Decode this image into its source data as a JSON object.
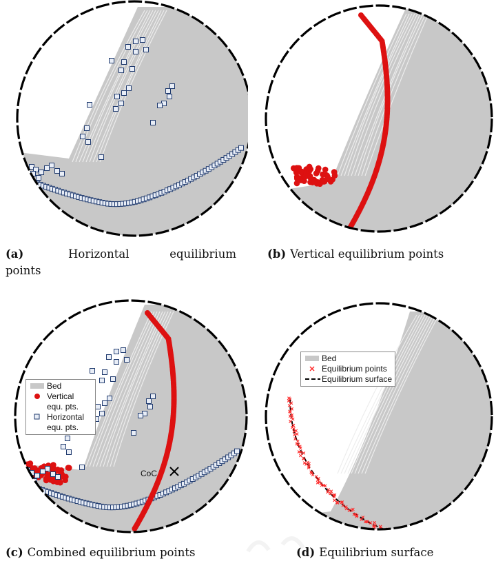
{
  "colors": {
    "bed": "#c8c8c8",
    "vertical_points": "#dd1111",
    "horizontal_points_edge": "#1f3a6e",
    "horizontal_points_fill": "#e9eef7",
    "surface_line": "#000000",
    "wall": "#000000",
    "equilibrium_points_small": "#ff2a2a"
  },
  "panels": {
    "a": {
      "label": "(a)",
      "caption": "Horizontal equilibrium points"
    },
    "b": {
      "label": "(b)",
      "caption": "Vertical equilibrium points"
    },
    "c": {
      "label": "(c)",
      "caption": "Combined equilibrium points",
      "legend": [
        {
          "symbol": "bed-swatch",
          "text": "Bed"
        },
        {
          "symbol": "red-dot",
          "text": "Vertical equ. pts."
        },
        {
          "symbol": "square-marker",
          "text": "Horizontal equ. pts."
        }
      ],
      "annotation": "CoC"
    },
    "d": {
      "label": "(d)",
      "caption": "Equilibrium surface",
      "legend": [
        {
          "symbol": "bed-swatch",
          "text": "Bed"
        },
        {
          "symbol": "red-x",
          "text": "Equilibrium points"
        },
        {
          "symbol": "dashed-line",
          "text": "Equilibrium surface"
        }
      ]
    }
  },
  "caption_a_words": [
    "Horizontal",
    "equilibrium"
  ],
  "caption_a_tail": "points"
}
